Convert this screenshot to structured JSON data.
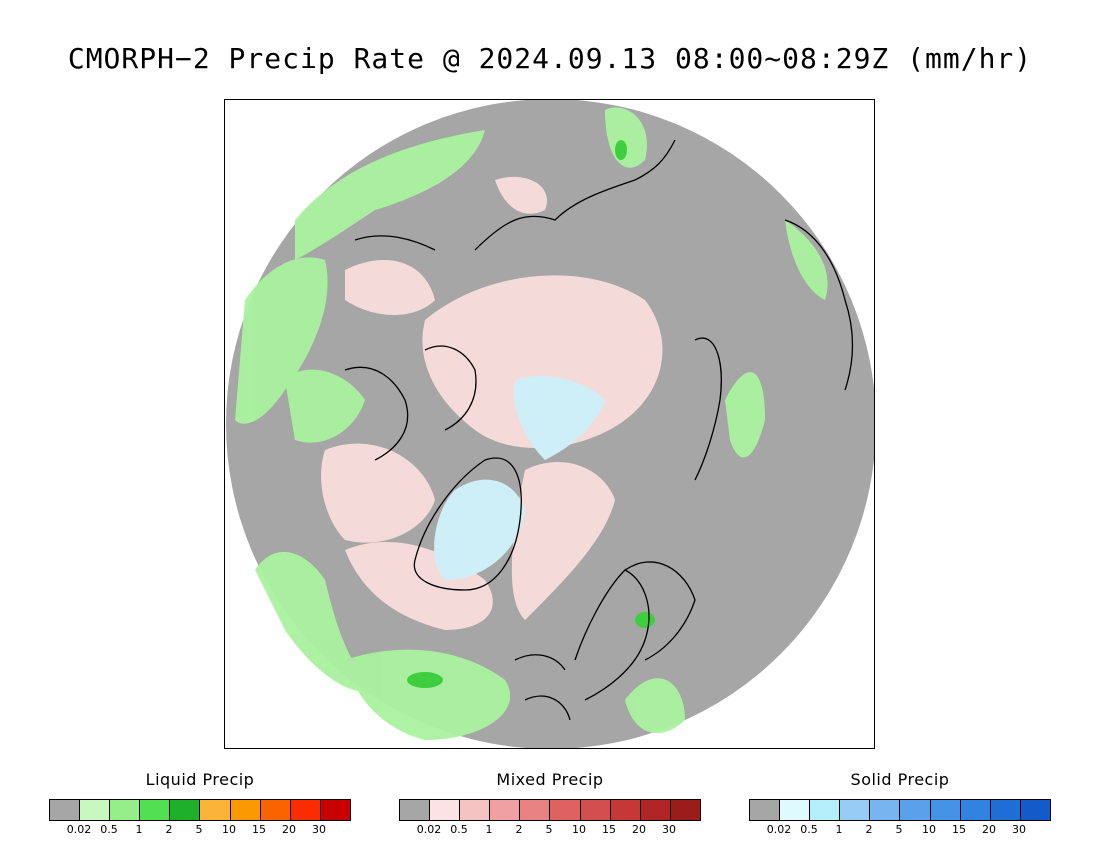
{
  "title": "CMORPH−2 Precip Rate @ 2024.09.13 08:00~08:29Z (mm/hr)",
  "map": {
    "projection": "north polar stereographic",
    "colors": {
      "background_no_precip": "#a6a6a6",
      "ocean_outside": "#ffffff",
      "coastline": "#000000"
    }
  },
  "legends": [
    {
      "title": "Liquid Precip",
      "colors": [
        "#a6a6a6",
        "#c8f8c0",
        "#96ee8a",
        "#52e052",
        "#1fb02a",
        "#fab336",
        "#fa9a00",
        "#fa6400",
        "#fa2d00",
        "#c80000"
      ],
      "ticks": [
        "0.02",
        "0.5",
        "1",
        "2",
        "5",
        "10",
        "15",
        "20",
        "30"
      ]
    },
    {
      "title": "Mixed Precip",
      "colors": [
        "#a6a6a6",
        "#fbe3e3",
        "#f6c3c3",
        "#f0a0a0",
        "#e98282",
        "#de6262",
        "#d34e4e",
        "#c63838",
        "#b02626",
        "#9c1c1c"
      ],
      "ticks": [
        "0.02",
        "0.5",
        "1",
        "2",
        "5",
        "10",
        "15",
        "20",
        "30"
      ]
    },
    {
      "title": "Solid Precip",
      "colors": [
        "#a6a6a6",
        "#e0fbff",
        "#b4eefa",
        "#96ccf5",
        "#78b4f0",
        "#5aa0eb",
        "#4692e6",
        "#3282e0",
        "#1e6ed6",
        "#145ac8"
      ],
      "ticks": [
        "0.02",
        "0.5",
        "1",
        "2",
        "5",
        "10",
        "15",
        "20",
        "30"
      ]
    }
  ]
}
